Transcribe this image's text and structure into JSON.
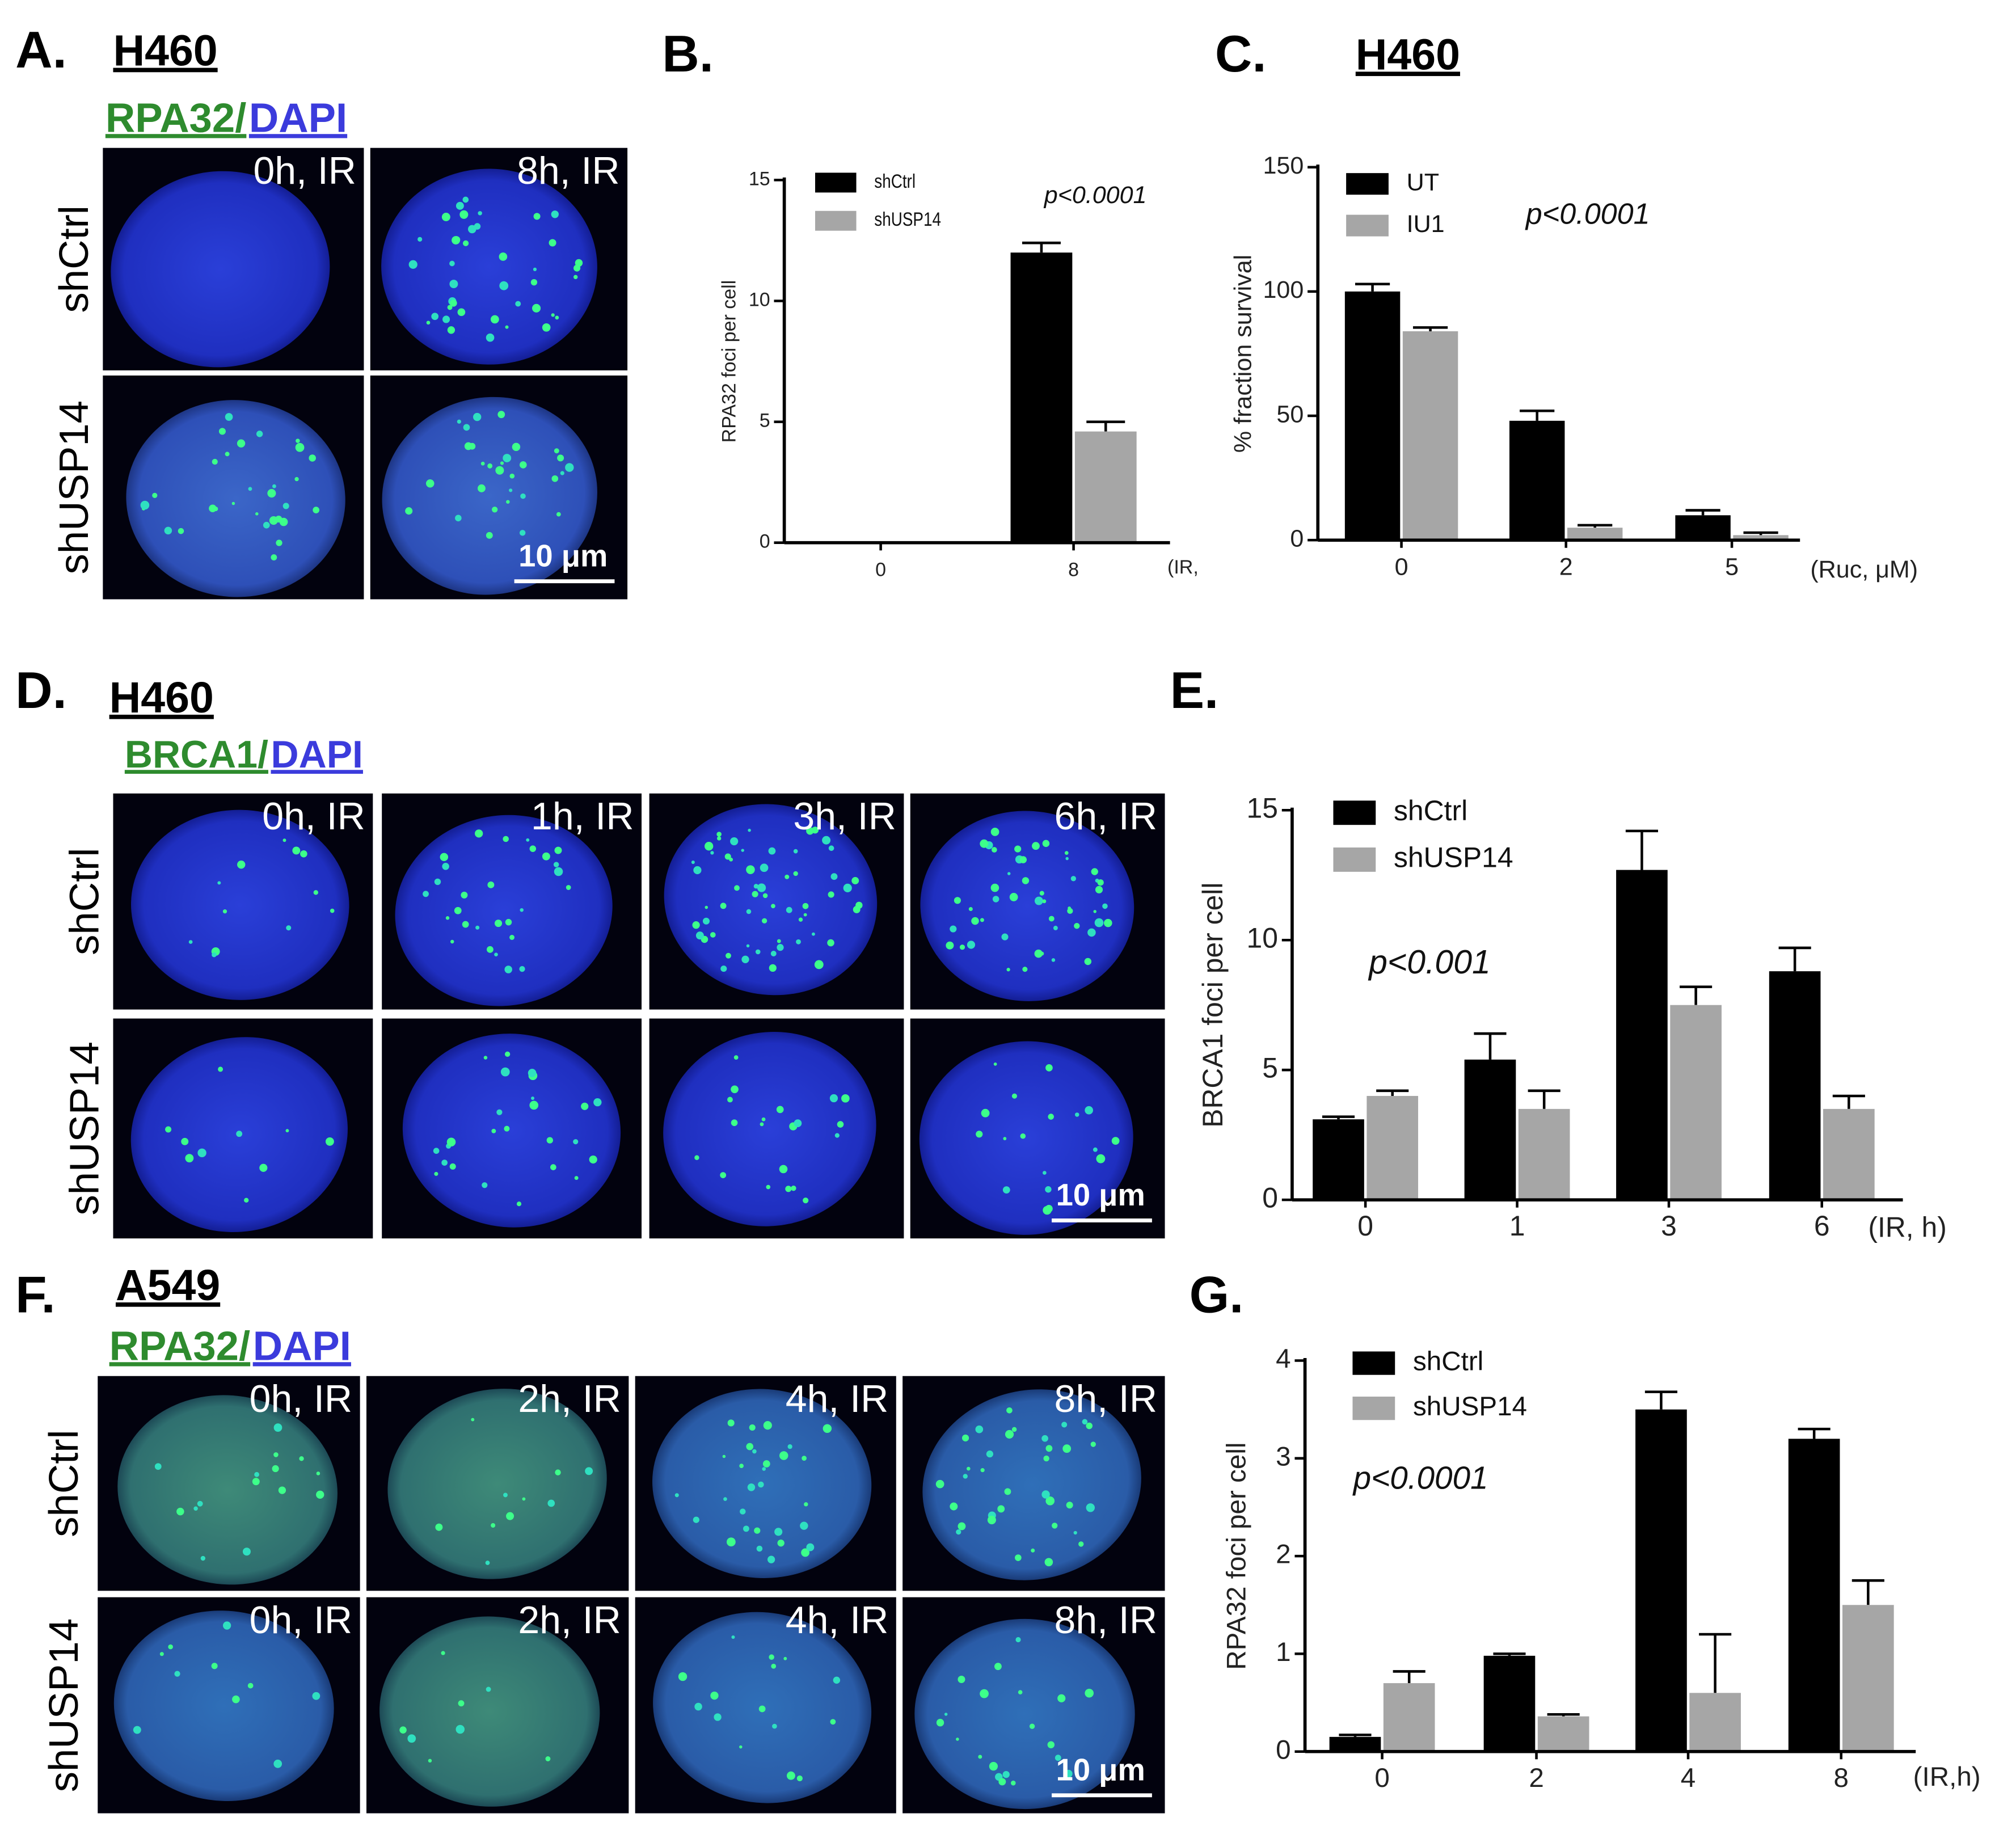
{
  "image_panels": [
    {
      "panel_label": "A.",
      "cell_line": "H460",
      "stain": [
        "RPA32/",
        "DAPI"
      ],
      "row_labels": [
        "shCtrl",
        "shUSP14"
      ],
      "tile_labels": [
        [
          "0h, IR",
          "8h, IR"
        ]
      ],
      "scale_bar": "10 μm"
    },
    {
      "panel_label": "D.",
      "cell_line": "H460",
      "stain": [
        "BRCA1/",
        "DAPI"
      ],
      "row_labels": [
        "shCtrl",
        "shUSP14"
      ],
      "tile_labels": [
        [
          "0h, IR",
          "1h, IR",
          "3h, IR",
          "6h, IR"
        ]
      ],
      "scale_bar": "10 μm"
    },
    {
      "panel_label": "F.",
      "cell_line": "A549",
      "stain": [
        "RPA32/",
        "DAPI"
      ],
      "row_labels": [
        "shCtrl",
        "shUSP14"
      ],
      "tile_labels": [
        [
          "0h, IR",
          "2h, IR",
          "4h, IR",
          "8h, IR"
        ],
        [
          "0h, IR",
          "2h, IR",
          "4h, IR",
          "8h, IR"
        ]
      ],
      "scale_bar": "10 μm"
    }
  ],
  "chart_data": [
    {
      "type": "bar",
      "panel_label": "B.",
      "ylabel": "RPA32 foci per cell",
      "xlabel": "(IR,",
      "annotation": "p<0.0001",
      "categories": [
        "0",
        "8"
      ],
      "series": [
        {
          "name": "shCtrl",
          "color": "#000000",
          "values": [
            0,
            12
          ],
          "errors": [
            0,
            0.4
          ]
        },
        {
          "name": "shUSP14",
          "color": "#a6a6a6",
          "values": [
            0,
            4.6
          ],
          "errors": [
            0,
            0.4
          ]
        }
      ],
      "ylim": [
        0,
        15
      ],
      "yticks": [
        0,
        5,
        10,
        15
      ]
    },
    {
      "type": "bar",
      "panel_label": "C.",
      "title": "H460",
      "ylabel": "% fraction survival",
      "xlabel": "(Ruc, μM)",
      "annotation": "p<0.0001",
      "categories": [
        "0",
        "2",
        "5"
      ],
      "series": [
        {
          "name": "UT",
          "color": "#000000",
          "values": [
            100,
            48,
            10
          ],
          "errors": [
            3,
            4,
            2
          ]
        },
        {
          "name": "IU1",
          "color": "#a6a6a6",
          "values": [
            84,
            5,
            2
          ],
          "errors": [
            1.5,
            1,
            1
          ]
        }
      ],
      "ylim": [
        0,
        150
      ],
      "yticks": [
        0,
        50,
        100,
        150
      ]
    },
    {
      "type": "bar",
      "panel_label": "E.",
      "ylabel": "BRCA1 foci per cell",
      "xlabel": "(IR, h)",
      "annotation": "p<0.001",
      "categories": [
        "0",
        "1",
        "3",
        "6"
      ],
      "series": [
        {
          "name": "shCtrl",
          "color": "#000000",
          "values": [
            3.1,
            5.4,
            12.7,
            8.8
          ],
          "errors": [
            0.1,
            1,
            1.5,
            0.9
          ]
        },
        {
          "name": "shUSP14",
          "color": "#a6a6a6",
          "values": [
            4.0,
            3.5,
            7.5,
            3.5
          ],
          "errors": [
            0.2,
            0.7,
            0.7,
            0.5
          ]
        }
      ],
      "ylim": [
        0,
        15
      ],
      "yticks": [
        0,
        5,
        10,
        15
      ]
    },
    {
      "type": "bar",
      "panel_label": "G.",
      "ylabel": "RPA32 foci per cell",
      "xlabel": "(IR,h)",
      "annotation": "p<0.0001",
      "categories": [
        "0",
        "2",
        "4",
        "8"
      ],
      "series": [
        {
          "name": "shCtrl",
          "color": "#000000",
          "values": [
            0.15,
            0.98,
            3.5,
            3.2
          ],
          "errors": [
            0.02,
            0.02,
            0.18,
            0.1
          ]
        },
        {
          "name": "shUSP14",
          "color": "#a6a6a6",
          "values": [
            0.7,
            0.36,
            0.6,
            1.5
          ],
          "errors": [
            0.12,
            0.02,
            0.6,
            0.25
          ]
        }
      ],
      "ylim": [
        0,
        4
      ],
      "yticks": [
        0,
        1,
        2,
        3,
        4
      ]
    }
  ]
}
